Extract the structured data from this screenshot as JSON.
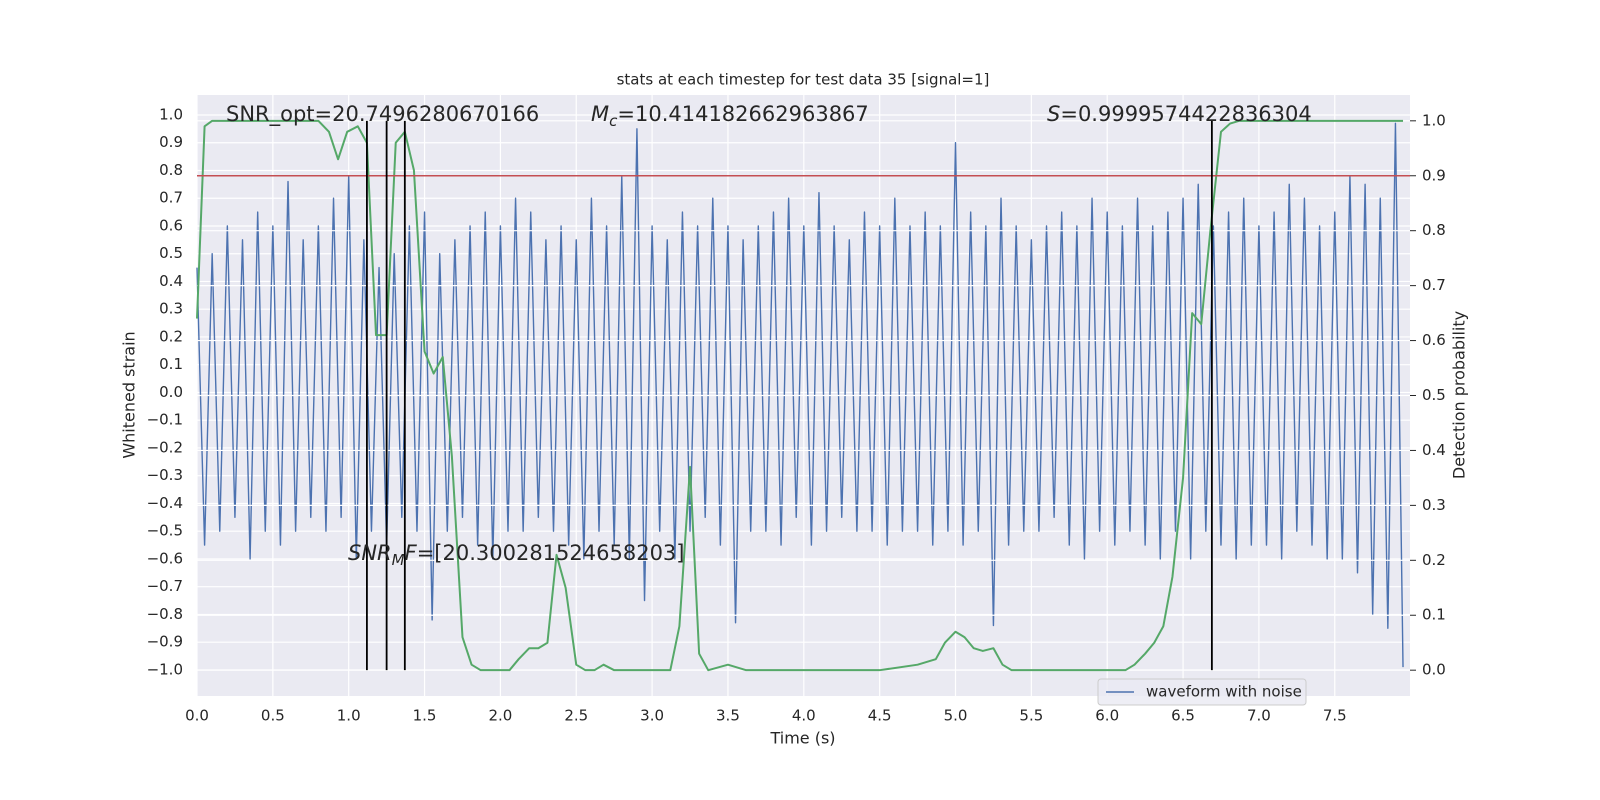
{
  "chart_data": {
    "type": "line",
    "title": "stats at each timestep for test data 35 [signal=1]",
    "xlabel": "Time (s)",
    "ylabel": "Whitened strain",
    "y2label": "Detection probability",
    "annotations": [
      {
        "parts": [
          {
            "text": "SNR_opt=20.7496280670166"
          }
        ]
      },
      {
        "parts": [
          {
            "text": "M",
            "style": "italic"
          },
          {
            "text": "c",
            "style": "sub-italic"
          },
          {
            "text": "=10.414182662963867"
          }
        ]
      },
      {
        "parts": [
          {
            "text": "S",
            "style": "italic"
          },
          {
            "text": "=0.9999574422836304"
          }
        ]
      },
      {
        "parts": [
          {
            "text": "SNR",
            "style": "italic"
          },
          {
            "text": "M",
            "style": "sub-italic"
          },
          {
            "text": "F",
            "style": "italic"
          },
          {
            "text": "=[20.300281524658203]"
          }
        ]
      }
    ],
    "xlim": [
      0,
      7.996
    ],
    "ylim": [
      -1.094,
      1.072
    ],
    "y2lim": [
      -0.047,
      1.047
    ],
    "grid": true,
    "legend": "lower right",
    "xticks": [
      {
        "value": 0,
        "label": "0.0"
      },
      {
        "value": 0.5,
        "label": "0.5"
      },
      {
        "value": 1,
        "label": "1.0"
      },
      {
        "value": 1.5,
        "label": "1.5"
      },
      {
        "value": 2,
        "label": "2.0"
      },
      {
        "value": 2.5,
        "label": "2.5"
      },
      {
        "value": 3,
        "label": "3.0"
      },
      {
        "value": 3.5,
        "label": "3.5"
      },
      {
        "value": 4,
        "label": "4.0"
      },
      {
        "value": 4.5,
        "label": "4.5"
      },
      {
        "value": 5,
        "label": "5.0"
      },
      {
        "value": 5.5,
        "label": "5.5"
      },
      {
        "value": 6,
        "label": "6.0"
      },
      {
        "value": 6.5,
        "label": "6.5"
      },
      {
        "value": 7,
        "label": "7.0"
      },
      {
        "value": 7.5,
        "label": "7.5"
      }
    ],
    "yticks": [
      {
        "value": 1,
        "label": "1.0"
      },
      0.9,
      0.8,
      0.7,
      0.6,
      0.5,
      0.4,
      0.3,
      0.2,
      0.1,
      {
        "value": 0,
        "label": "0.0"
      },
      {
        "value": -0.1,
        "label": "−0.1"
      },
      {
        "value": -0.2,
        "label": "−0.2"
      },
      {
        "value": -0.3,
        "label": "−0.3"
      },
      {
        "value": -0.4,
        "label": "−0.4"
      },
      {
        "value": -0.5,
        "label": "−0.5"
      },
      {
        "value": -0.6,
        "label": "−0.6"
      },
      {
        "value": -0.7,
        "label": "−0.7"
      },
      {
        "value": -0.8,
        "label": "−0.8"
      },
      {
        "value": -0.9,
        "label": "−0.9"
      },
      {
        "value": -1,
        "label": "−1.0"
      }
    ],
    "y2ticks": [
      {
        "value": 0,
        "label": "0.0"
      },
      0.1,
      0.2,
      0.3,
      0.4,
      0.5,
      0.6,
      0.7,
      0.8,
      0.9,
      {
        "value": 1,
        "label": "1.0"
      }
    ],
    "series": [
      {
        "name": "waveform with noise",
        "color": "#4c72b0",
        "x": [
          0,
          0.05,
          0.1,
          0.15,
          0.2,
          0.25,
          0.3,
          0.35,
          0.4,
          0.45,
          0.5,
          0.55,
          0.6,
          0.65,
          0.7,
          0.75,
          0.8,
          0.85,
          0.9,
          0.95,
          1,
          1.05,
          1.1,
          1.15,
          1.2,
          1.25,
          1.3,
          1.35,
          1.4,
          1.45,
          1.5,
          1.55,
          1.6,
          1.65,
          1.7,
          1.75,
          1.8,
          1.85,
          1.9,
          1.95,
          2,
          2.05,
          2.1,
          2.15,
          2.2,
          2.25,
          2.3,
          2.35,
          2.4,
          2.45,
          2.5,
          2.55,
          2.6,
          2.65,
          2.7,
          2.75,
          2.8,
          2.85,
          2.9,
          2.95,
          3,
          3.05,
          3.1,
          3.15,
          3.2,
          3.25,
          3.3,
          3.35,
          3.4,
          3.45,
          3.5,
          3.55,
          3.6,
          3.65,
          3.7,
          3.75,
          3.8,
          3.85,
          3.9,
          3.95,
          4,
          4.05,
          4.1,
          4.15,
          4.2,
          4.25,
          4.3,
          4.35,
          4.4,
          4.45,
          4.5,
          4.55,
          4.6,
          4.65,
          4.7,
          4.75,
          4.8,
          4.85,
          4.9,
          4.95,
          5,
          5.05,
          5.1,
          5.15,
          5.2,
          5.25,
          5.3,
          5.35,
          5.4,
          5.45,
          5.5,
          5.55,
          5.6,
          5.65,
          5.7,
          5.75,
          5.8,
          5.85,
          5.9,
          5.95,
          6,
          6.05,
          6.1,
          6.15,
          6.2,
          6.25,
          6.3,
          6.35,
          6.4,
          6.45,
          6.5,
          6.55,
          6.6,
          6.65,
          6.7,
          6.75,
          6.8,
          6.85,
          6.9,
          6.95,
          7,
          7.05,
          7.1,
          7.15,
          7.2,
          7.25,
          7.3,
          7.35,
          7.4,
          7.45,
          7.5,
          7.55,
          7.6,
          7.65,
          7.7,
          7.75,
          7.8,
          7.85,
          7.9,
          7.95
        ],
        "values": [
          0.45,
          -0.55,
          0.5,
          -0.5,
          0.6,
          -0.45,
          0.55,
          -0.6,
          0.65,
          -0.5,
          0.6,
          -0.55,
          0.76,
          -0.5,
          0.55,
          -0.45,
          0.6,
          -0.5,
          0.7,
          -0.45,
          0.78,
          -0.6,
          0.55,
          -0.5,
          0.45,
          -0.55,
          0.5,
          -0.45,
          0.6,
          -0.5,
          0.65,
          -0.82,
          0.5,
          -0.5,
          0.55,
          -0.45,
          0.6,
          -0.55,
          0.65,
          -0.6,
          0.6,
          -0.5,
          0.7,
          -0.5,
          0.65,
          -0.45,
          0.55,
          -0.5,
          0.6,
          -0.55,
          0.55,
          -0.6,
          0.7,
          -0.5,
          0.6,
          -0.55,
          0.78,
          -0.6,
          0.95,
          -0.75,
          0.6,
          -0.5,
          0.55,
          -0.6,
          0.65,
          -0.5,
          0.6,
          -0.45,
          0.7,
          -0.55,
          0.6,
          -0.83,
          0.55,
          -0.5,
          0.6,
          -0.5,
          0.65,
          -0.55,
          0.7,
          -0.45,
          0.6,
          -0.55,
          0.72,
          -0.5,
          0.6,
          -0.45,
          0.55,
          -0.5,
          0.65,
          -0.5,
          0.6,
          -0.55,
          0.7,
          -0.5,
          0.6,
          -0.5,
          0.65,
          -0.55,
          0.6,
          -0.5,
          0.9,
          -0.55,
          0.65,
          -0.5,
          0.6,
          -0.84,
          0.7,
          -0.55,
          0.6,
          -0.5,
          0.55,
          -0.5,
          0.6,
          -0.45,
          0.65,
          -0.55,
          0.6,
          -0.6,
          0.7,
          -0.5,
          0.65,
          -0.55,
          0.6,
          -0.5,
          0.7,
          -0.55,
          0.6,
          -0.6,
          0.65,
          -0.5,
          0.7,
          -0.6,
          0.75,
          -0.5,
          0.6,
          -0.55,
          0.65,
          -0.6,
          0.7,
          -0.55,
          0.6,
          -0.55,
          0.65,
          -0.6,
          0.75,
          -0.5,
          0.7,
          -0.55,
          0.6,
          -0.6,
          0.65,
          -0.6,
          0.78,
          -0.65,
          0.75,
          -0.8,
          0.7,
          -0.85,
          0.97,
          -0.99
        ]
      },
      {
        "color": "#55a868",
        "axis": "y2",
        "x": [
          0,
          0.05,
          0.1,
          0.2,
          0.5,
          0.8,
          0.87,
          0.93,
          0.99,
          1.06,
          1.12,
          1.18,
          1.25,
          1.31,
          1.37,
          1.43,
          1.5,
          1.56,
          1.62,
          1.68,
          1.75,
          1.81,
          1.87,
          2,
          2.06,
          2.12,
          2.19,
          2.25,
          2.31,
          2.37,
          2.43,
          2.5,
          2.56,
          2.62,
          2.68,
          2.75,
          2.81,
          3,
          3.12,
          3.18,
          3.25,
          3.31,
          3.37,
          3.5,
          3.62,
          4,
          4.5,
          4.75,
          4.87,
          4.93,
          5,
          5.06,
          5.12,
          5.18,
          5.25,
          5.31,
          5.37,
          5.5,
          6,
          6.12,
          6.18,
          6.25,
          6.31,
          6.37,
          6.43,
          6.5,
          6.56,
          6.62,
          6.68,
          6.75,
          6.81,
          6.87,
          7,
          7.5,
          7.95
        ],
        "values": [
          0.64,
          0.99,
          1,
          1,
          1,
          1,
          0.98,
          0.93,
          0.98,
          0.99,
          0.96,
          0.61,
          0.61,
          0.96,
          0.98,
          0.91,
          0.58,
          0.54,
          0.57,
          0.39,
          0.06,
          0.01,
          0,
          0,
          0,
          0.02,
          0.04,
          0.04,
          0.05,
          0.21,
          0.15,
          0.01,
          0,
          0,
          0.01,
          0,
          0,
          0,
          0,
          0.08,
          0.37,
          0.03,
          0,
          0.01,
          0,
          0,
          0,
          0.01,
          0.02,
          0.05,
          0.07,
          0.06,
          0.04,
          0.035,
          0.04,
          0.01,
          0,
          0,
          0,
          0,
          0.01,
          0.03,
          0.05,
          0.08,
          0.17,
          0.35,
          0.65,
          0.63,
          0.8,
          0.98,
          0.995,
          1,
          1,
          1,
          1
        ]
      }
    ],
    "hlines": [
      {
        "value": 0.9,
        "axis": "y2",
        "color": "#c44e52"
      }
    ],
    "vlines": {
      "x": [
        1.12,
        1.25,
        1.37,
        6.69
      ],
      "color": "#000000"
    }
  }
}
